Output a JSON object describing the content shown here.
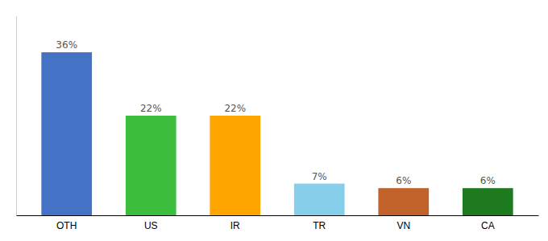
{
  "chart_data": {
    "type": "bar",
    "categories": [
      "OTH",
      "US",
      "IR",
      "TR",
      "VN",
      "CA"
    ],
    "values": [
      36,
      22,
      22,
      7,
      6,
      6
    ],
    "value_labels": [
      "36%",
      "22%",
      "22%",
      "7%",
      "6%",
      "6%"
    ],
    "colors": [
      "#4472C4",
      "#3DBD3D",
      "#FFA500",
      "#87CEEB",
      "#C0622A",
      "#1E7A1E"
    ],
    "ylim": [
      0,
      44
    ],
    "data_labels": true,
    "tick_labels": "x"
  }
}
